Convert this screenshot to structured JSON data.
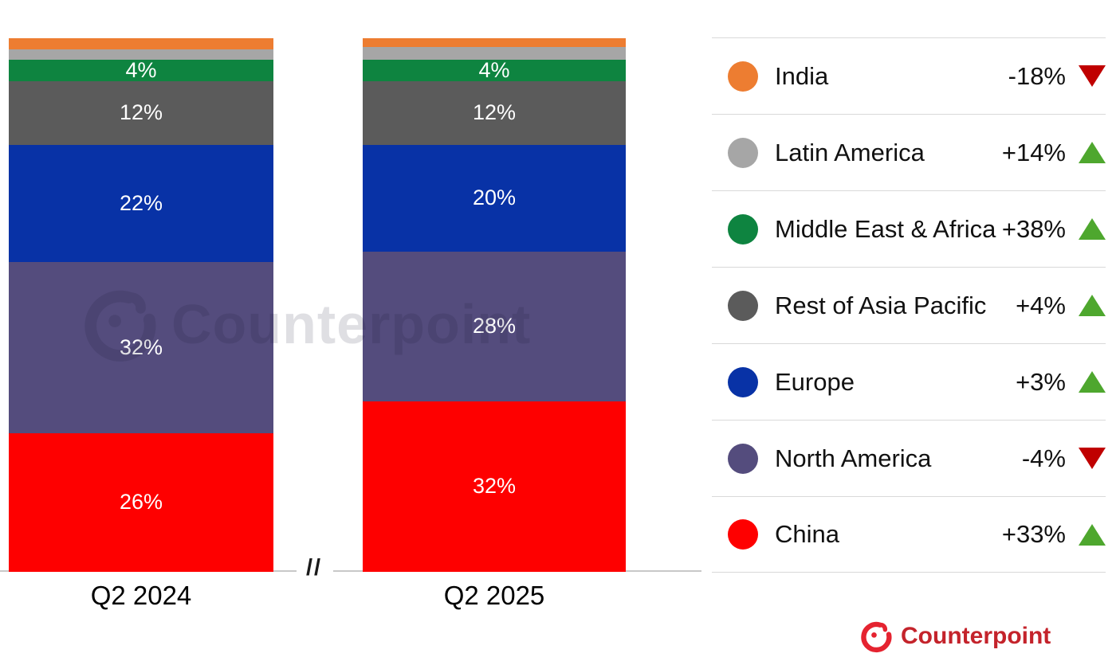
{
  "chart_data": {
    "type": "bar",
    "stacked": true,
    "unit": "%",
    "title": "",
    "categories": [
      "Q2 2024",
      "Q2 2025"
    ],
    "ylim": [
      0,
      100
    ],
    "axis_break_mark": "//",
    "legend_position": "right",
    "series_bottom_to_top": [
      {
        "name": "China",
        "color": "#FE0000",
        "values": [
          26,
          32
        ],
        "labels": [
          "26%",
          "32%"
        ],
        "change": "+33%",
        "trend": "up"
      },
      {
        "name": "North America",
        "color": "#544C7D",
        "values": [
          32,
          28
        ],
        "labels": [
          "32%",
          "28%"
        ],
        "change": "-4%",
        "trend": "down"
      },
      {
        "name": "Europe",
        "color": "#0832A6",
        "values": [
          22,
          20
        ],
        "labels": [
          "22%",
          "20%"
        ],
        "change": "+3%",
        "trend": "up"
      },
      {
        "name": "Rest of Asia Pacific",
        "color": "#5B5B5B",
        "values": [
          12,
          12
        ],
        "labels": [
          "12%",
          "12%"
        ],
        "change": "+4%",
        "trend": "up"
      },
      {
        "name": "Middle East & Africa",
        "color": "#0E8440",
        "values": [
          4,
          4
        ],
        "labels": [
          "4%",
          "4%"
        ],
        "change": "+38%",
        "trend": "up"
      },
      {
        "name": "Latin America",
        "color": "#A6A6A6",
        "values": [
          1.9,
          2.3
        ],
        "labels": [
          "",
          ""
        ],
        "change": "+14%",
        "trend": "up"
      },
      {
        "name": "India",
        "color": "#ED7D31",
        "values": [
          2.1,
          1.7
        ],
        "labels": [
          "",
          ""
        ],
        "change": "-18%",
        "trend": "down"
      }
    ]
  },
  "colors": {
    "trend_up": "#4EA72E",
    "trend_down": "#C00000",
    "axis_line": "#C8C8C8",
    "legend_divider": "#D9D9D9",
    "watermark": "#14142d",
    "brand_icon": "#E52330",
    "brand_text": "#C4232B"
  },
  "watermark": {
    "text": "Counterpoint"
  },
  "brand": {
    "name": "Counterpoint"
  }
}
